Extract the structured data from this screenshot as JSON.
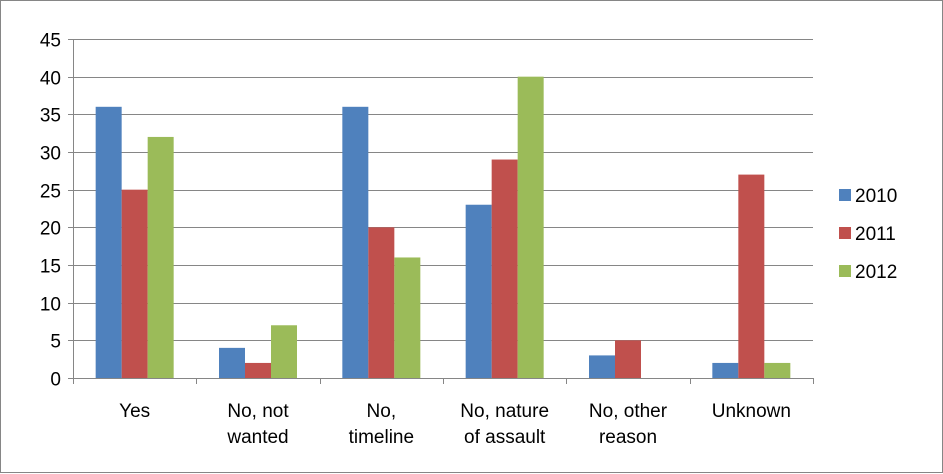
{
  "chart_data": {
    "type": "bar",
    "categories": [
      [
        "Yes"
      ],
      [
        "No, not",
        "wanted"
      ],
      [
        "No,",
        "timeline"
      ],
      [
        "No, nature",
        "of assault"
      ],
      [
        "No, other",
        "reason"
      ],
      [
        "Unknown"
      ]
    ],
    "series": [
      {
        "name": "2010",
        "color": "#4F81BD",
        "values": [
          36,
          4,
          36,
          23,
          3,
          2
        ]
      },
      {
        "name": "2011",
        "color": "#C0504D",
        "values": [
          25,
          2,
          20,
          29,
          5,
          27
        ]
      },
      {
        "name": "2012",
        "color": "#9BBB59",
        "values": [
          32,
          7,
          16,
          40,
          0,
          2
        ]
      }
    ],
    "ylim": [
      0,
      45
    ],
    "yticks": [
      0,
      5,
      10,
      15,
      20,
      25,
      30,
      35,
      40,
      45
    ],
    "grid": true,
    "legend": "right",
    "title": "",
    "xlabel": "",
    "ylabel": ""
  }
}
